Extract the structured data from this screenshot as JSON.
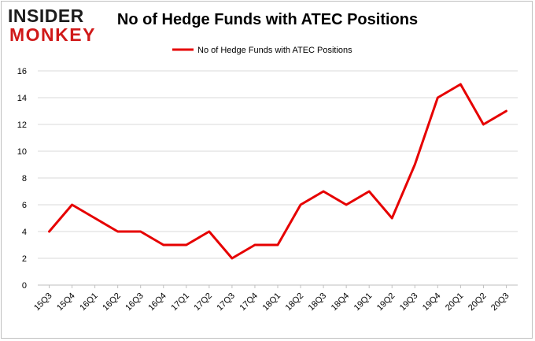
{
  "brand": {
    "line1": "INSIDER",
    "line2": "MONKEY"
  },
  "chart_data": {
    "type": "line",
    "title": "No of Hedge Funds with ATEC Positions",
    "xlabel": "",
    "ylabel": "",
    "categories": [
      "15Q3",
      "15Q4",
      "16Q1",
      "16Q2",
      "16Q3",
      "16Q4",
      "17Q1",
      "17Q2",
      "17Q3",
      "17Q4",
      "18Q1",
      "18Q2",
      "18Q3",
      "18Q4",
      "19Q1",
      "19Q2",
      "19Q3",
      "19Q4",
      "20Q1",
      "20Q2",
      "20Q3"
    ],
    "series": [
      {
        "name": "No of Hedge Funds with ATEC Positions",
        "color": "#e60000",
        "values": [
          4,
          6,
          5,
          4,
          4,
          3,
          3,
          4,
          2,
          3,
          3,
          6,
          7,
          6,
          7,
          5,
          9,
          14,
          15,
          12,
          13
        ]
      }
    ],
    "ylim": [
      0,
      16
    ],
    "yticks": [
      0,
      2,
      4,
      6,
      8,
      10,
      12,
      14,
      16
    ],
    "grid": true,
    "legend": "top-center"
  }
}
